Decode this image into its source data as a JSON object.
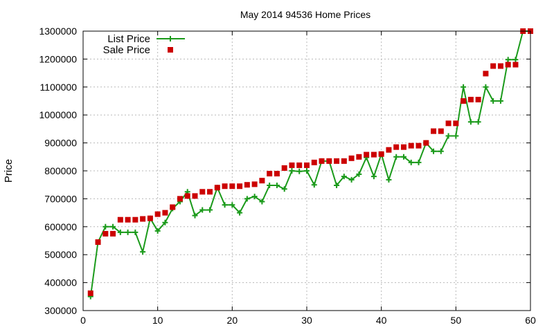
{
  "chart_data": {
    "type": "line",
    "title": "May 2014 94536 Home Prices",
    "xlabel": "",
    "ylabel": "Price",
    "xlim": [
      0,
      60
    ],
    "ylim": [
      300000,
      1300000
    ],
    "x_ticks": [
      0,
      10,
      20,
      30,
      40,
      50,
      60
    ],
    "y_ticks": [
      300000,
      400000,
      500000,
      600000,
      700000,
      800000,
      900000,
      1000000,
      1100000,
      1200000,
      1300000
    ],
    "grid": true,
    "legend_position": "top-left",
    "x": [
      1,
      2,
      3,
      4,
      5,
      6,
      7,
      8,
      9,
      10,
      11,
      12,
      13,
      14,
      15,
      16,
      17,
      18,
      19,
      20,
      21,
      22,
      23,
      24,
      25,
      26,
      27,
      28,
      29,
      30,
      31,
      32,
      33,
      34,
      35,
      36,
      37,
      38,
      39,
      40,
      41,
      42,
      43,
      44,
      45,
      46,
      47,
      48,
      49,
      50,
      51,
      52,
      53,
      54,
      55,
      56,
      57,
      58,
      59,
      60
    ],
    "series": [
      {
        "name": "List Price",
        "style": "line-plus",
        "color": "#1a9a1a",
        "values": [
          350000,
          545000,
          600000,
          600000,
          580000,
          580000,
          580000,
          510000,
          630000,
          585000,
          615000,
          665000,
          690000,
          725000,
          640000,
          660000,
          660000,
          740000,
          678000,
          678000,
          650000,
          700000,
          708000,
          690000,
          748000,
          748000,
          735000,
          800000,
          798000,
          800000,
          750000,
          835000,
          835000,
          748000,
          780000,
          768000,
          788000,
          848000,
          780000,
          860000,
          768000,
          850000,
          850000,
          830000,
          830000,
          900000,
          870000,
          870000,
          925000,
          925000,
          1100000,
          975000,
          975000,
          1100000,
          1050000,
          1050000,
          1198000,
          1198000,
          1300000,
          1300000
        ]
      },
      {
        "name": "Sale Price",
        "style": "square-points",
        "color": "#cc0000",
        "values": [
          362000,
          545000,
          575000,
          575000,
          625000,
          625000,
          625000,
          628000,
          630000,
          645000,
          650000,
          670000,
          700000,
          710000,
          710000,
          725000,
          725000,
          740000,
          745000,
          745000,
          745000,
          750000,
          752000,
          765000,
          790000,
          790000,
          810000,
          820000,
          820000,
          820000,
          830000,
          835000,
          835000,
          835000,
          835000,
          845000,
          850000,
          858000,
          858000,
          860000,
          875000,
          885000,
          885000,
          890000,
          890000,
          900000,
          942000,
          942000,
          970000,
          970000,
          1050000,
          1055000,
          1055000,
          1148000,
          1175000,
          1175000,
          1180000,
          1180000,
          1300000,
          1300000
        ]
      }
    ]
  },
  "colors": {
    "list_price": "#1a9a1a",
    "sale_price": "#cc0000",
    "grid": "#b8b8b8",
    "axis": "#000000"
  }
}
